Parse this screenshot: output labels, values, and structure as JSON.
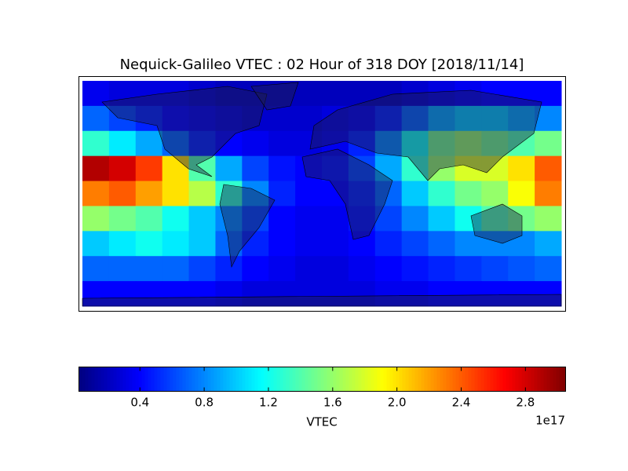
{
  "chart_data": {
    "type": "heatmap",
    "title": "Nequick-Galileo VTEC : 02 Hour of 318 DOY [2018/11/14]",
    "colormap": "jet",
    "xlim": [
      -180,
      180
    ],
    "ylim": [
      -90,
      90
    ],
    "x": [
      -170,
      -150,
      -130,
      -110,
      -90,
      -70,
      -50,
      -30,
      -10,
      10,
      30,
      50,
      70,
      90,
      110,
      130,
      150,
      170
    ],
    "y": [
      80,
      60,
      40,
      20,
      0,
      -20,
      -40,
      -60,
      -80
    ],
    "values": [
      [
        0.35,
        0.3,
        0.3,
        0.3,
        0.25,
        0.2,
        0.2,
        0.2,
        0.2,
        0.2,
        0.2,
        0.2,
        0.25,
        0.3,
        0.35,
        0.4,
        0.4,
        0.4
      ],
      [
        0.7,
        0.6,
        0.5,
        0.4,
        0.35,
        0.3,
        0.25,
        0.25,
        0.25,
        0.3,
        0.35,
        0.5,
        0.7,
        0.9,
        1.0,
        1.0,
        0.9,
        0.8
      ],
      [
        1.3,
        1.1,
        0.9,
        0.7,
        0.5,
        0.4,
        0.35,
        0.3,
        0.3,
        0.35,
        0.5,
        0.8,
        1.2,
        1.5,
        1.6,
        1.5,
        1.4,
        1.5
      ],
      [
        2.9,
        2.8,
        2.5,
        2.0,
        1.4,
        0.9,
        0.6,
        0.45,
        0.4,
        0.45,
        0.6,
        0.9,
        1.3,
        1.6,
        1.8,
        1.8,
        2.0,
        2.4
      ],
      [
        2.3,
        2.4,
        2.2,
        2.0,
        1.7,
        1.3,
        0.8,
        0.5,
        0.4,
        0.4,
        0.5,
        0.7,
        1.0,
        1.3,
        1.5,
        1.6,
        1.9,
        2.3
      ],
      [
        1.6,
        1.5,
        1.4,
        1.2,
        1.0,
        0.8,
        0.6,
        0.4,
        0.35,
        0.35,
        0.45,
        0.6,
        0.8,
        1.0,
        1.2,
        1.4,
        1.5,
        1.6
      ],
      [
        1.0,
        1.1,
        1.2,
        1.1,
        1.0,
        0.7,
        0.5,
        0.4,
        0.35,
        0.35,
        0.4,
        0.5,
        0.6,
        0.7,
        0.8,
        0.8,
        0.8,
        0.9
      ],
      [
        0.7,
        0.7,
        0.7,
        0.7,
        0.6,
        0.5,
        0.4,
        0.35,
        0.3,
        0.3,
        0.35,
        0.4,
        0.45,
        0.5,
        0.55,
        0.6,
        0.65,
        0.7
      ],
      [
        0.4,
        0.4,
        0.4,
        0.4,
        0.4,
        0.35,
        0.3,
        0.3,
        0.3,
        0.3,
        0.3,
        0.35,
        0.35,
        0.4,
        0.4,
        0.4,
        0.4,
        0.4
      ]
    ],
    "clim": [
      0.02,
      3.05
    ],
    "colorbar": {
      "label": "VTEC",
      "offset_label": "1e17",
      "ticks": [
        0.4,
        0.8,
        1.2,
        1.6,
        {
          "value": 2,
          "label": "2.0"
        },
        2.4,
        2.8
      ]
    }
  }
}
